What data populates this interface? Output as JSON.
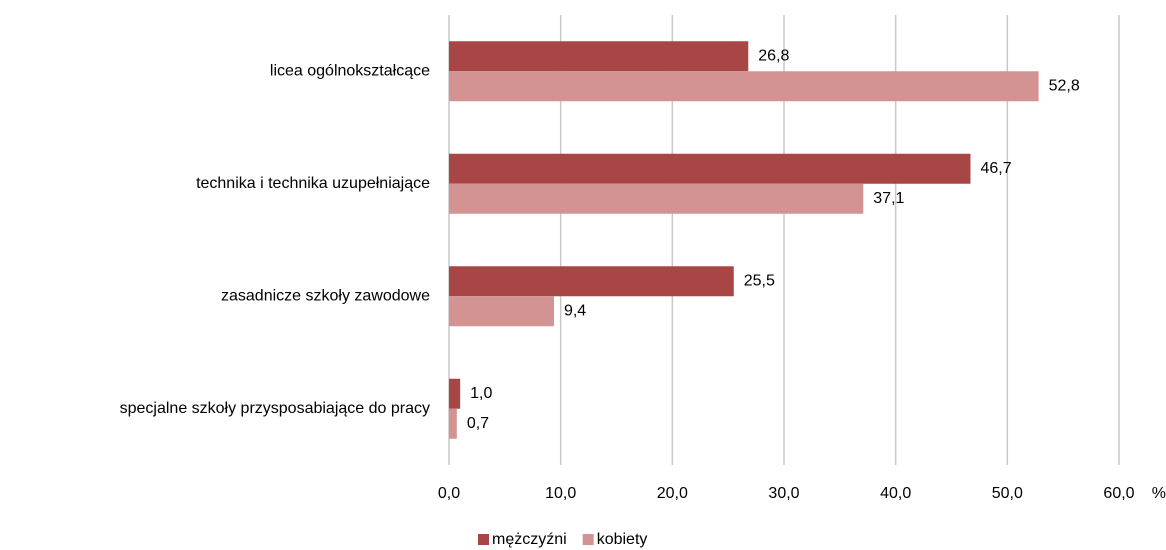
{
  "chart_data": {
    "type": "bar",
    "orientation": "horizontal",
    "categories": [
      "licea ogólnokształcące",
      "technika i technika uzupełniające",
      "zasadnicze szkoły zawodowe",
      "specjalne szkoły przysposabiające do pracy"
    ],
    "series": [
      {
        "name": "mężczyźni",
        "color": "#a84646",
        "values": [
          26.8,
          46.7,
          25.5,
          1.0
        ],
        "value_labels": [
          "26,8",
          "46,7",
          "25,5",
          "1,0"
        ]
      },
      {
        "name": "kobiety",
        "color": "#d49393",
        "values": [
          52.8,
          37.1,
          9.4,
          0.7
        ],
        "value_labels": [
          "52,8",
          "37,1",
          "9,4",
          "0,7"
        ]
      }
    ],
    "xlim": [
      0,
      60
    ],
    "xticks": [
      {
        "value": 0,
        "label": "0,0"
      },
      {
        "value": 10,
        "label": "10,0"
      },
      {
        "value": 20,
        "label": "20,0"
      },
      {
        "value": 30,
        "label": "30,0"
      },
      {
        "value": 40,
        "label": "40,0"
      },
      {
        "value": 50,
        "label": "50,0"
      },
      {
        "value": 60,
        "label": "60,0"
      }
    ],
    "x_unit": "%",
    "grid": true,
    "legend": "bottom"
  }
}
